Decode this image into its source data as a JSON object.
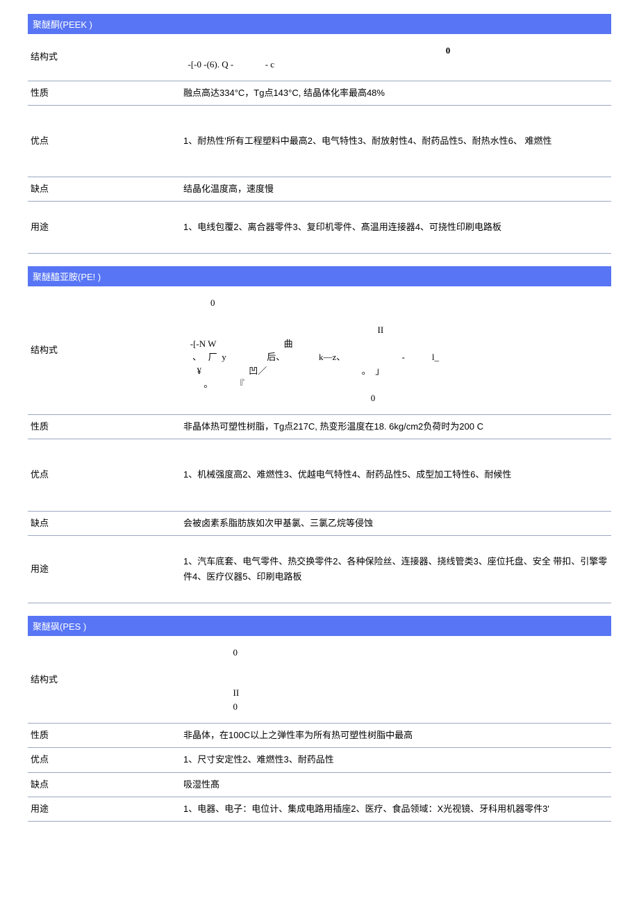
{
  "materials": [
    {
      "title": "聚醚酮(PEEK  )",
      "rows": [
        {
          "label": "结构式",
          "type": "struct",
          "lines": [
            {
              "text": "0",
              "cls": "bold-zero"
            },
            {
              "text": "  -[-0 -(6). Q -              - c"
            }
          ],
          "height": "normal"
        },
        {
          "label": "性质",
          "value": "融点高达334°C，Tg点143°C, 结晶体化率最高48%",
          "height": "normal"
        },
        {
          "label": "优点",
          "value": "1、耐热性'所有工程塑料中最高2、电气特性3、耐放射性4、耐药品性5、耐热水性6、 难燃性",
          "height": "xtall"
        },
        {
          "label": "缺点",
          "value": "结晶化温度高，速度慢",
          "height": "normal"
        },
        {
          "label": "用途",
          "value": "1、电线包覆2、离合器零件3、复印机零件、髙温用连接器4、可挠性印刷电路板",
          "height": "tall"
        }
      ]
    },
    {
      "title": "聚醚醯亚胺(PE!  )",
      "rows": [
        {
          "label": "结构式",
          "type": "struct",
          "lines": [
            {
              "text": "            0"
            },
            {
              "text": ""
            },
            {
              "text": "                                                                                      II"
            },
            {
              "text": "   -[-N W                              曲"
            },
            {
              "text": "    、   厂  y                  后、               k—z、                         -            l_   "
            },
            {
              "text": "      ¥                     凹／                                          。  」"
            },
            {
              "text": "         。          『"
            },
            {
              "text": "                                                                                   0"
            }
          ],
          "height": "normal"
        },
        {
          "label": "性质",
          "value": "非晶体热可塑性树脂，Tg点217C, 热变形温度在18. 6kg/cm2负荷时为200 C",
          "height": "normal"
        },
        {
          "label": "优点",
          "value": "1、机械强度高2、难燃性3、优越电气特性4、耐药品性5、成型加工特性6、耐候性",
          "height": "xtall"
        },
        {
          "label": "缺点",
          "value": "会被卤素系脂肪族如次甲基氯、三氯乙烷等侵蚀",
          "height": "normal"
        },
        {
          "label": "用途",
          "value": "1、汽车底套、电气零件、热交换零件2、各种保险丝、连接器、挠线管类3、座位托盘、安全 带扣、引擎零件4、医疗仪器5、印刷电路板",
          "height": "tall"
        }
      ]
    },
    {
      "title": "聚醚砜(PES  )",
      "rows": [
        {
          "label": "结构式",
          "type": "struct",
          "lines": [
            {
              "text": "                      0"
            },
            {
              "text": ""
            },
            {
              "text": ""
            },
            {
              "text": "                      II"
            },
            {
              "text": "                      0"
            }
          ],
          "height": "normal"
        },
        {
          "label": "性质",
          "value": "非晶体，在100C以上之弹性率为所有热可塑性树脂中最高",
          "height": "normal"
        },
        {
          "label": "优点",
          "value": "1、尺寸安定性2、难燃性3、耐药品性",
          "height": "normal"
        },
        {
          "label": "缺点",
          "value": "吸湿性髙",
          "height": "normal"
        },
        {
          "label": "用途",
          "value": "1、电器、电子：电位计、集成电路用插座2、医疗、食品领域：X光视镜、牙科用机器零件3'",
          "height": "normal"
        }
      ]
    }
  ],
  "colors": {
    "header_bg": "#5775f4",
    "header_text": "#ffffff",
    "border": "#9aa7c0",
    "body_bg": "#ffffff",
    "text": "#000000"
  }
}
